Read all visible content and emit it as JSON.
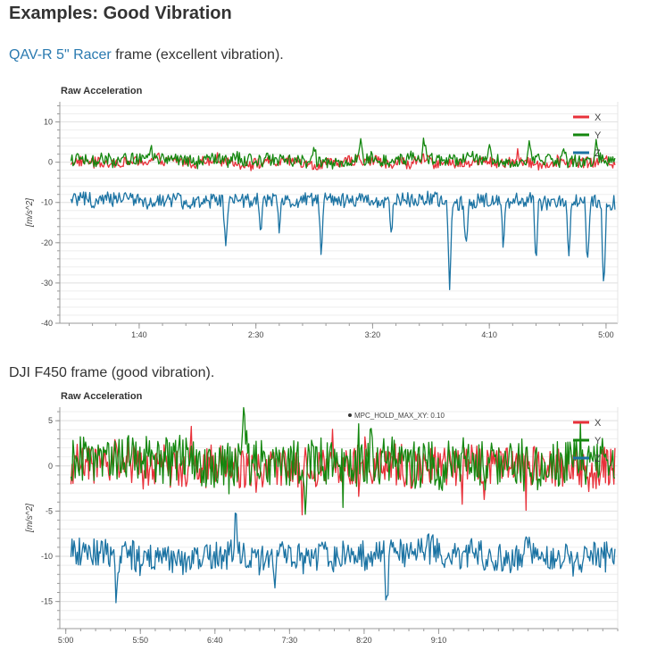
{
  "page": {
    "title": "Examples: Good Vibration",
    "section1": {
      "link": "QAV-R 5\" Racer",
      "rest": " frame (excellent vibration)."
    },
    "section2": {
      "text": "DJI F450 frame (good vibration)."
    }
  },
  "colors": {
    "x": "#e8313a",
    "y": "#14870f",
    "z": "#1b73a3",
    "link": "#2a7ab0"
  },
  "chart_data": [
    {
      "type": "line",
      "title": "Raw Acceleration",
      "ylabel": "[m/s^2]",
      "ylim": [
        -40,
        15
      ],
      "yticks": [
        10,
        0,
        -10,
        -20,
        -30,
        -40
      ],
      "ytick_labels": [
        "10",
        "0",
        "-10",
        "-20",
        "-30",
        "-40"
      ],
      "xlim": [
        66,
        305
      ],
      "xticks": [
        100,
        150,
        200,
        250,
        300
      ],
      "xtick_labels": [
        "1:40",
        "2:30",
        "3:20",
        "4:10",
        "5:00"
      ],
      "legend": "top-right",
      "annotation": "",
      "series": [
        {
          "name": "X",
          "baseline": 0,
          "noise": 1.3,
          "spikes": [
            [
              188,
              2
            ],
            [
              262,
              2.5
            ],
            [
              300,
              2
            ]
          ]
        },
        {
          "name": "Y",
          "baseline": 0.5,
          "noise": 1.6,
          "spikes": [
            [
              105,
              3
            ],
            [
              175,
              4
            ],
            [
              195,
              5
            ],
            [
              222,
              6
            ],
            [
              250,
              6
            ],
            [
              267,
              5
            ],
            [
              282,
              4
            ],
            [
              296,
              6
            ]
          ]
        },
        {
          "name": "Z",
          "baseline": -9.5,
          "noise": 1.8,
          "spikes": [
            [
              137,
              -20
            ],
            [
              152,
              -18
            ],
            [
              178,
              -25
            ],
            [
              233,
              -32
            ],
            [
              240,
              -22
            ],
            [
              270,
              -27
            ],
            [
              284,
              -25
            ],
            [
              299,
              -33
            ],
            [
              292,
              -26
            ],
            [
              160,
              -17
            ],
            [
              208,
              -17
            ],
            [
              256,
              -21
            ]
          ]
        }
      ]
    },
    {
      "type": "line",
      "title": "Raw Acceleration",
      "ylabel": "[m/s^2]",
      "ylim": [
        -18,
        6.5
      ],
      "yticks": [
        5,
        0,
        -5,
        -10,
        -15
      ],
      "ytick_labels": [
        "5",
        "0",
        "-5",
        "-10",
        "-15"
      ],
      "xlim": [
        296,
        670
      ],
      "xticks": [
        300,
        350,
        400,
        450,
        500,
        550
      ],
      "xtick_labels": [
        "5:00",
        "5:50",
        "6:40",
        "7:30",
        "8:20",
        "9:10"
      ],
      "legend": "top-right",
      "annotation": "MPC_HOLD_MAX_XY: 0.10",
      "series": [
        {
          "name": "X",
          "baseline": 0,
          "noise": 2.2,
          "spikes": []
        },
        {
          "name": "Y",
          "baseline": 0.3,
          "noise": 2.6,
          "spikes": [
            [
              420,
              5.8
            ],
            [
              505,
              5.5
            ],
            [
              460,
              -5
            ]
          ]
        },
        {
          "name": "Z",
          "baseline": -9.8,
          "noise": 1.6,
          "spikes": [
            [
              334,
              -15
            ],
            [
              414,
              -4.5
            ],
            [
              515,
              -17
            ],
            [
              440,
              -13
            ]
          ]
        }
      ]
    }
  ]
}
